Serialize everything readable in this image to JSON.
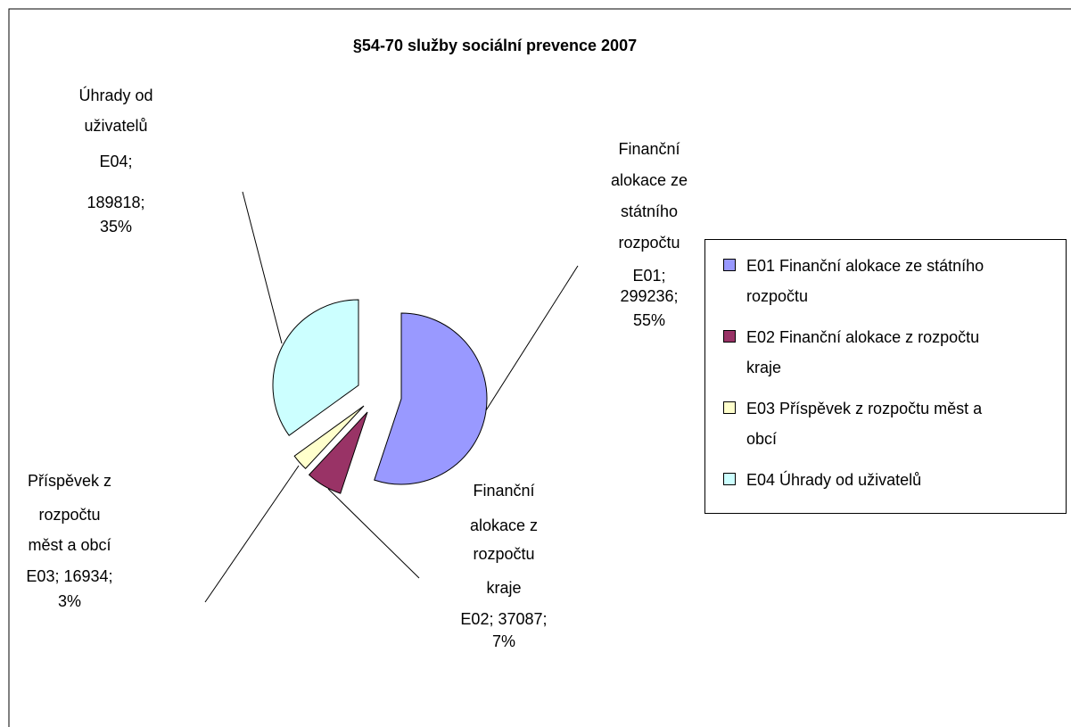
{
  "chart_data": {
    "type": "pie",
    "title": "§54-70 služby sociální prevence 2007",
    "series": [
      {
        "name": "E01 Finanční alokace ze státního rozpočtu",
        "color": "#9999ff"
      },
      {
        "name": "E02 Finanční alokace z rozpočtu kraje",
        "color": "#993366"
      },
      {
        "name": "E03 Příspěvek z rozpočtu měst a obcí",
        "color": "#ffffcc"
      },
      {
        "name": "E04 Úhrady od uživatelů",
        "color": "#ccffff"
      }
    ],
    "values": [
      299236,
      37087,
      16934,
      189818
    ],
    "percent_labels": [
      "55%",
      "7%",
      "3%",
      "35%"
    ],
    "separator": ";",
    "data_labels": [
      {
        "lines": [
          "Finanční",
          "alokace ze",
          "státního",
          "rozpočtu"
        ],
        "code": "E01"
      },
      {
        "lines": [
          "Finanční",
          "alokace z",
          "rozpočtu",
          "kraje"
        ],
        "code": "E02"
      },
      {
        "lines": [
          "Příspěvek z",
          "rozpočtu",
          "měst a obcí"
        ],
        "code": "E03"
      },
      {
        "lines": [
          "Úhrady od",
          "uživatelů"
        ],
        "code": "E04"
      }
    ]
  }
}
